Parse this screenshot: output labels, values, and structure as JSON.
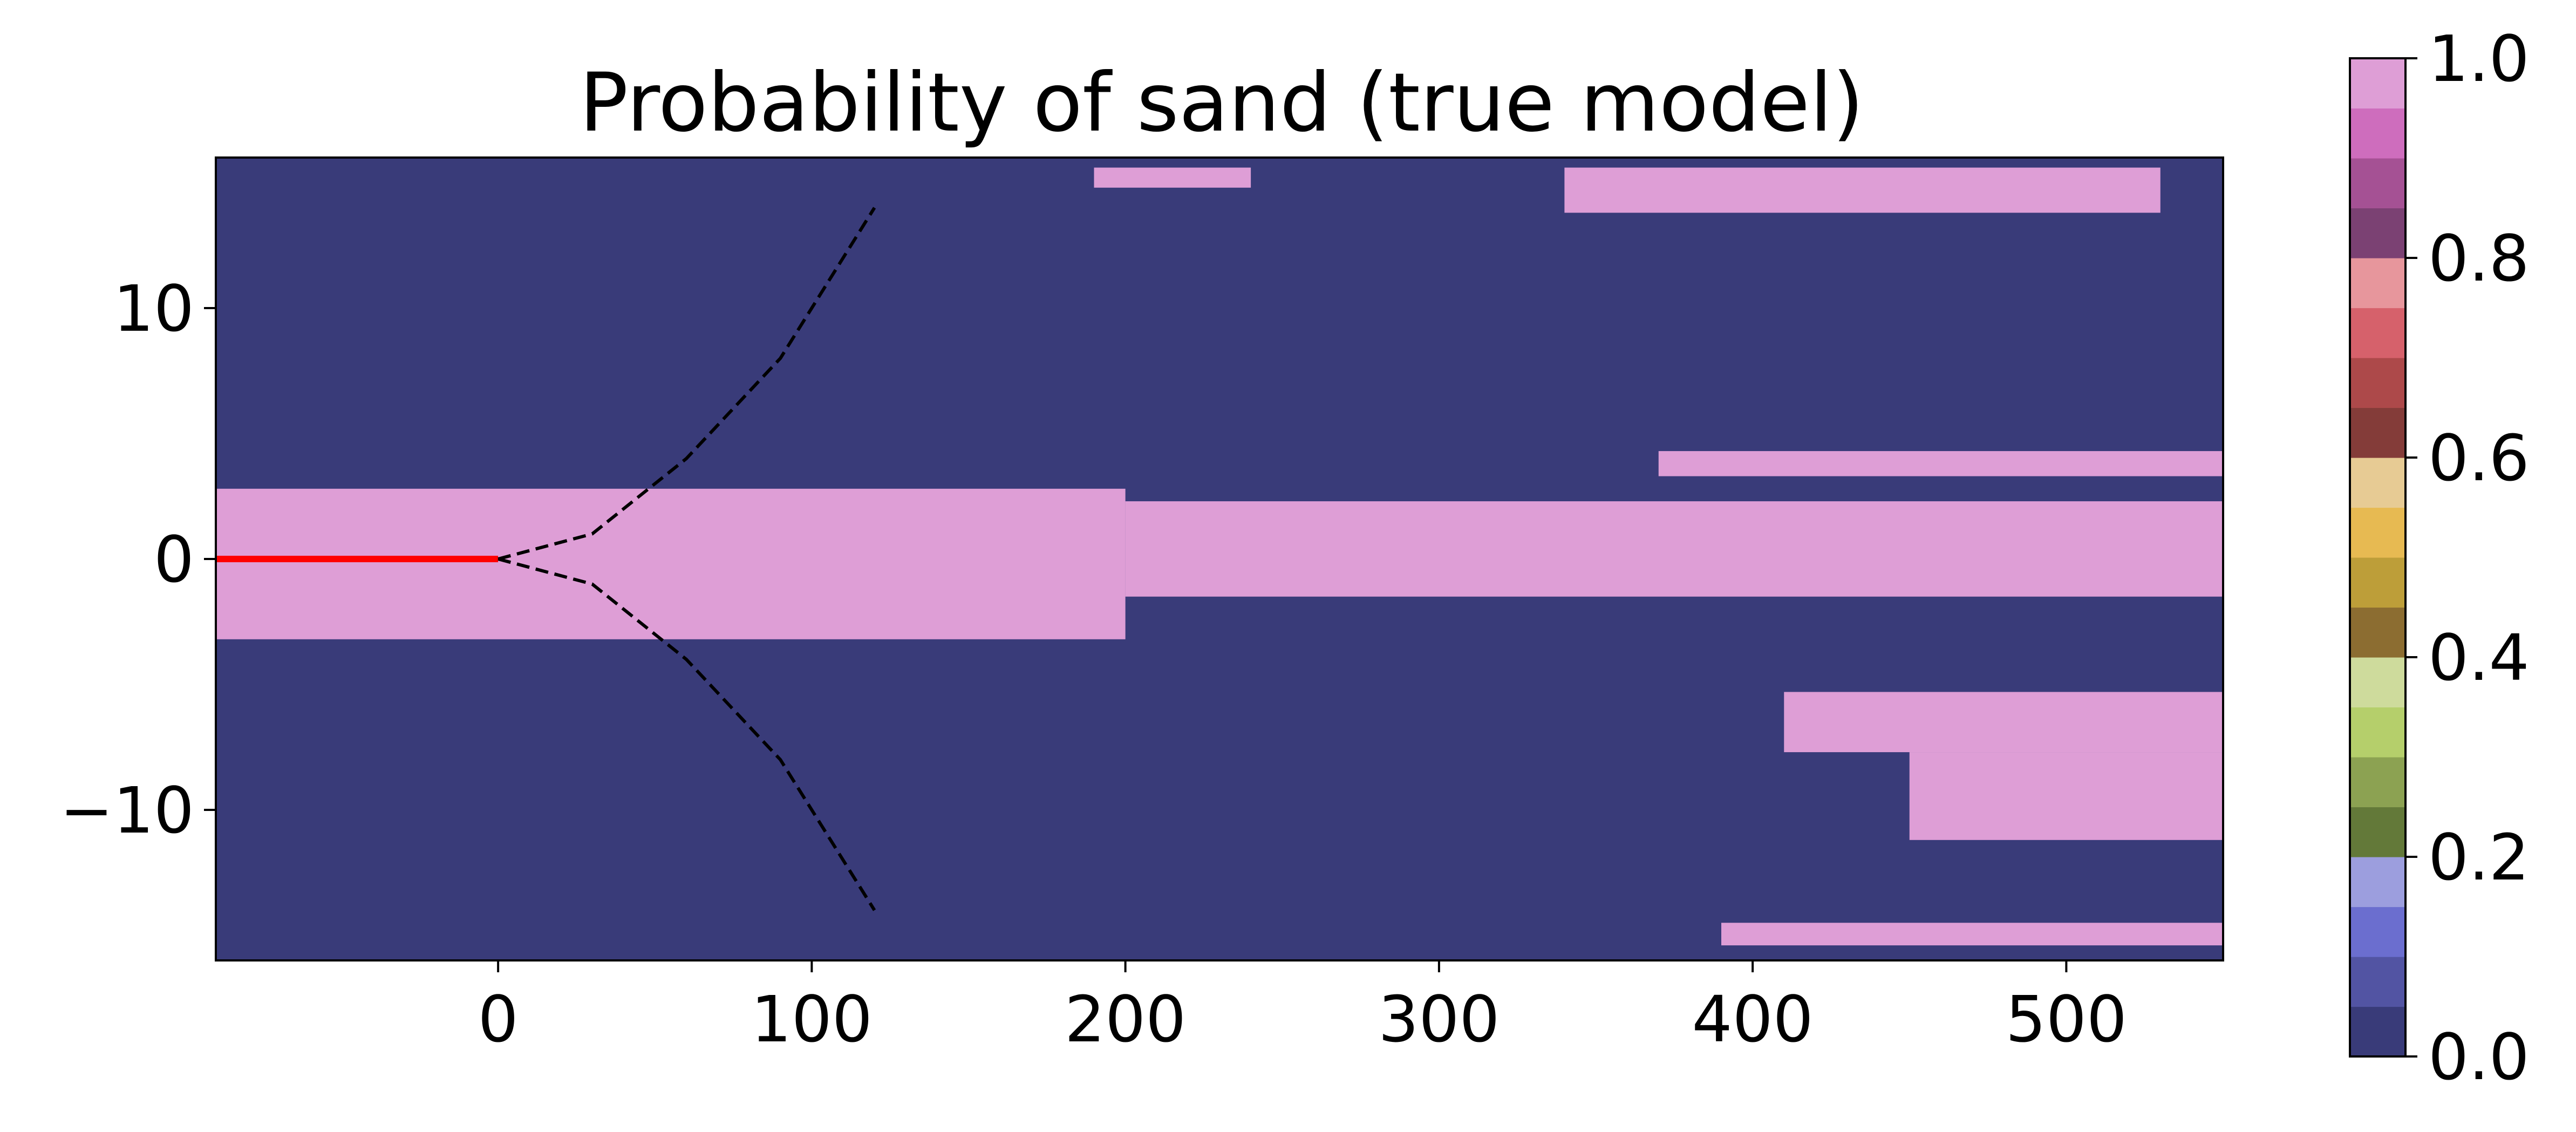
{
  "chart_data": {
    "type": "heatmap",
    "title": "Probability of sand (true model)",
    "xlabel": "",
    "ylabel": "",
    "xlim": [
      -90,
      550
    ],
    "ylim": [
      -16,
      16
    ],
    "xticks": [
      0,
      100,
      200,
      300,
      400,
      500
    ],
    "xtick_labels": [
      "0",
      "100",
      "200",
      "300",
      "400",
      "500"
    ],
    "yticks": [
      -10,
      0,
      10
    ],
    "ytick_labels": [
      "−10",
      "0",
      "10"
    ],
    "background_value": 0.0,
    "sand_value": 1.0,
    "sand_regions": [
      {
        "x": [
          -90,
          200
        ],
        "y": [
          -3.2,
          2.8
        ]
      },
      {
        "x": [
          -90,
          -70
        ],
        "y": [
          -1.7,
          -1.7
        ]
      },
      {
        "x": [
          200,
          550
        ],
        "y": [
          -1.5,
          2.3
        ]
      },
      {
        "x": [
          370,
          550
        ],
        "y": [
          3.3,
          4.3
        ]
      },
      {
        "x": [
          410,
          550
        ],
        "y": [
          -7.7,
          -5.3
        ]
      },
      {
        "x": [
          450,
          550
        ],
        "y": [
          -11.2,
          -7.7
        ]
      },
      {
        "x": [
          390,
          550
        ],
        "y": [
          -15.4,
          -14.5
        ]
      },
      {
        "x": [
          190,
          240
        ],
        "y": [
          14.8,
          15.6
        ]
      },
      {
        "x": [
          340,
          530
        ],
        "y": [
          13.8,
          15.6
        ]
      }
    ],
    "lines": [
      {
        "name": "",
        "style": "solid",
        "color": "#ff0000",
        "x": [
          -90,
          0
        ],
        "y": [
          0,
          0
        ]
      },
      {
        "name": "",
        "style": "dashed",
        "color": "#000000",
        "x": [
          0,
          30,
          60,
          90,
          120
        ],
        "y": [
          0,
          1,
          4,
          8,
          14
        ]
      },
      {
        "name": "",
        "style": "dashed",
        "color": "#000000",
        "x": [
          0,
          30,
          60,
          90,
          120
        ],
        "y": [
          0,
          -1,
          -4,
          -8,
          -14
        ]
      }
    ],
    "colorbar": {
      "range": [
        0.0,
        1.0
      ],
      "ticks": [
        0.0,
        0.2,
        0.4,
        0.6,
        0.8,
        1.0
      ],
      "tick_labels": [
        "0.0",
        "0.2",
        "0.4",
        "0.6",
        "0.8",
        "1.0"
      ],
      "colors": [
        "#393b79",
        "#5254a3",
        "#6b6ecf",
        "#9c9ede",
        "#637939",
        "#8ca252",
        "#b5cf6b",
        "#cedb9c",
        "#8c6d31",
        "#bd9e39",
        "#e7ba52",
        "#e7cb94",
        "#843c39",
        "#ad494a",
        "#d6616b",
        "#e7969c",
        "#7b4173",
        "#a55194",
        "#ce6dbd",
        "#de9ed6"
      ]
    },
    "grid": false
  }
}
